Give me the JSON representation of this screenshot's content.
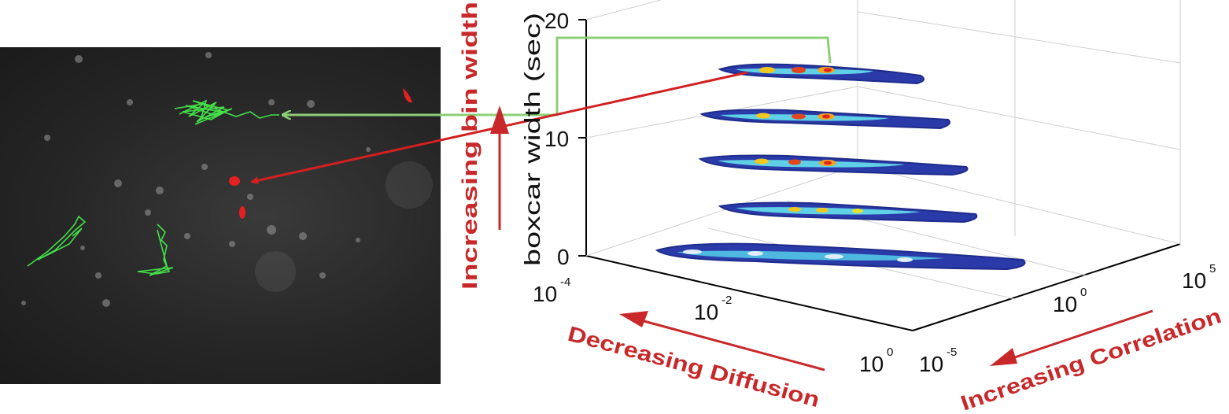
{
  "axes": {
    "z_label": "boxcar width (sec)",
    "z_ticks": [
      "0",
      "10",
      "20"
    ],
    "x_ticks": [
      {
        "base": "10",
        "exp": "-4"
      },
      {
        "base": "10",
        "exp": "-2"
      },
      {
        "base": "10",
        "exp": "0"
      }
    ],
    "y_ticks": [
      {
        "base": "10",
        "exp": "-5"
      },
      {
        "base": "10",
        "exp": "0"
      },
      {
        "base": "10",
        "exp": "5"
      }
    ]
  },
  "annotations": {
    "increasing_bin_width": "Increasing bin width",
    "decreasing_diffusion": "Decreasing Diffusion",
    "increasing_correlation": "Increasing Correlation"
  },
  "colors": {
    "red_annotation": "#c8282a",
    "green_track": "#44e048",
    "green_link": "#8ccf74",
    "contour_outer": "#1f2c8c"
  }
}
